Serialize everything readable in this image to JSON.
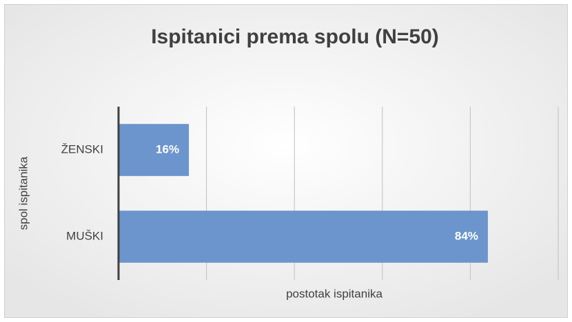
{
  "chart_data": {
    "type": "barh",
    "title": "Ispitanici prema spolu (N=50)",
    "categories": [
      "ŽENSKI",
      "MUŠKI"
    ],
    "values": [
      16,
      84
    ],
    "value_labels": [
      "16%",
      "84%"
    ],
    "color": "#6b95cc",
    "xlabel": "postotak ispitanika",
    "ylabel": "spol ispitanika",
    "xlim": [
      0,
      100
    ],
    "xticks": [
      0,
      20,
      40,
      60,
      80,
      100
    ],
    "grid": true
  }
}
